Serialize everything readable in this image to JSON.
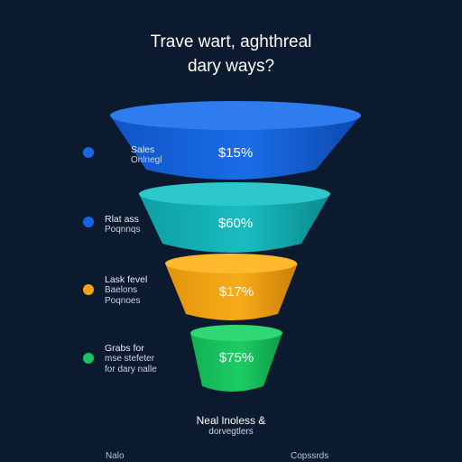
{
  "title": {
    "line1": "Trave wart, aghthreal",
    "line2": "dary ways?"
  },
  "stages": [
    {
      "label_lines": [
        "Sales",
        "Onlnegl"
      ],
      "value": "$15%",
      "color": "#1565e0",
      "side_color": "#0f4fb8",
      "top_color": "#2f7cf0",
      "dot_color": "#1a66e0"
    },
    {
      "label_lines": [
        "Rlat ass",
        "Poqnnqs"
      ],
      "value": "$60%",
      "color": "#13b2b6",
      "side_color": "#0d8c90",
      "top_color": "#2cc8cb",
      "dot_color": "#1565e0"
    },
    {
      "label_lines": [
        "Lask fevel",
        "Baelons",
        "Poqnoes"
      ],
      "value": "$17%",
      "color": "#f5a511",
      "side_color": "#cf870a",
      "top_color": "#ffb92e",
      "dot_color": "#f5a511"
    },
    {
      "label_lines": [
        "Grabs for",
        "mse stefeter",
        "for dary nalle"
      ],
      "value": "$75%",
      "color": "#18c45e",
      "side_color": "#12a04c",
      "top_color": "#2fd872",
      "dot_color": "#18c45e"
    }
  ],
  "footer": {
    "line1": "Neal lnoless &",
    "line2": "dorvegtlers"
  },
  "corner_left": "Nalo",
  "corner_right": "Copssrds"
}
